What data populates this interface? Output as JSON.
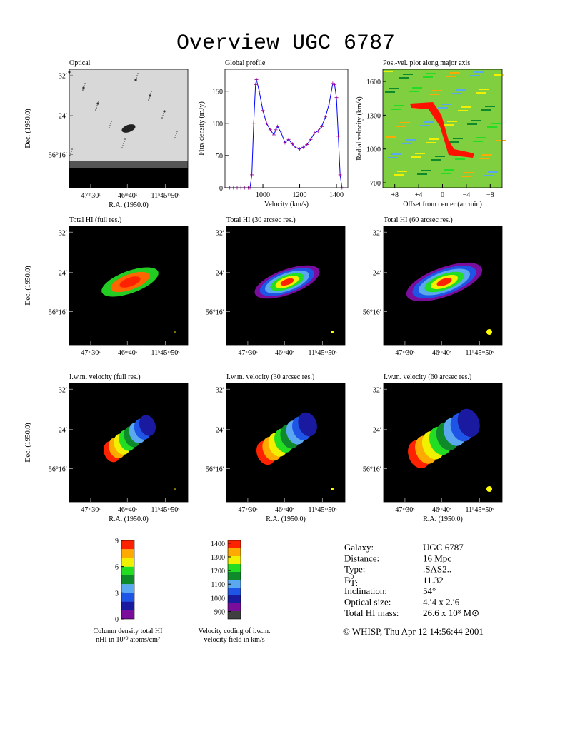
{
  "title": "Overview UGC 6787",
  "chart_data": [
    {
      "type": "line",
      "title": "Global profile",
      "xlabel": "Velocity (km/s)",
      "ylabel": "Flux density (mJy)",
      "x": [
        800,
        820,
        840,
        860,
        880,
        900,
        920,
        930,
        940,
        950,
        960,
        965,
        980,
        1000,
        1020,
        1040,
        1060,
        1070,
        1080,
        1100,
        1120,
        1140,
        1160,
        1180,
        1200,
        1220,
        1240,
        1260,
        1280,
        1300,
        1320,
        1340,
        1360,
        1380,
        1390,
        1400,
        1410,
        1420,
        1430,
        1440
      ],
      "series": [
        {
          "name": "Flux density",
          "color": "#0000ff",
          "marker_color": "#990099",
          "values": [
            0,
            0,
            0,
            0,
            0,
            0,
            0,
            0,
            20,
            100,
            160,
            168,
            150,
            120,
            100,
            90,
            82,
            90,
            95,
            85,
            70,
            75,
            68,
            62,
            60,
            63,
            67,
            75,
            85,
            88,
            95,
            110,
            130,
            162,
            160,
            140,
            80,
            20,
            0,
            0
          ]
        }
      ],
      "xlim": [
        794,
        1462
      ],
      "xticks": [
        1000,
        1200,
        1400
      ],
      "ylim": [
        0,
        184
      ],
      "yticks": [
        0,
        50,
        100,
        150
      ]
    },
    {
      "type": "image",
      "title": "Pos.-vel. plot along major axis",
      "xlabel": "Offset from center (arcmin)",
      "ylabel": "Radial velocity (km/s)",
      "xlim": [
        10,
        -10
      ],
      "xticks": [
        {
          "value": 8,
          "label": "+8"
        },
        {
          "value": 4,
          "label": "+4"
        },
        0,
        {
          "value": -4,
          "label": "−4"
        },
        {
          "value": -8,
          "label": "−8"
        }
      ],
      "ylim": [
        656,
        1708
      ],
      "yticks": [
        700,
        1000,
        1300,
        1600
      ]
    }
  ],
  "panels": [
    {
      "title": "Optical",
      "xlabel": "R.A. (1950.0)",
      "ylabel": "Dec. (1950.0)"
    },
    {
      "title": "Total HI (full res.)",
      "ylabel": "Dec. (1950.0)"
    },
    {
      "title": "Total HI (30 arcsec res.)"
    },
    {
      "title": "Total HI (60 arcsec res.)"
    },
    {
      "title": "I.w.m. velocity (full res.)",
      "xlabel": "R.A. (1950.0)",
      "ylabel": "Dec. (1950.0)"
    },
    {
      "title": "I.w.m. velocity (30 arcsec res.)",
      "xlabel": "R.A. (1950.0)"
    },
    {
      "title": "I.w.m. velocity (60 arcsec res.)",
      "xlabel": "R.A. (1950.0)"
    }
  ],
  "ra_ticks": [
    "47ᵐ30ˢ",
    "46ᵐ40ˢ",
    "11ʰ45ᵐ50ˢ"
  ],
  "dec_ticks": [
    "32′",
    "24′",
    "56°16′"
  ],
  "colorbars": [
    {
      "caption": [
        "Column density total HI",
        "nHI in 10²⁰ atoms/cm²"
      ],
      "lim": [
        0,
        9
      ],
      "ticks": [
        0,
        3,
        6,
        9
      ],
      "colors": [
        "#7a0d9c",
        "#1a1aa0",
        "#1f55e6",
        "#5aa8f0",
        "#0e8a2a",
        "#22dd22",
        "#f0f000",
        "#ffaa00",
        "#ff2200"
      ]
    },
    {
      "caption": [
        "Velocity coding of i.w.m.",
        "velocity field in km/s"
      ],
      "lim": [
        845,
        1420
      ],
      "ticks": [
        900,
        1000,
        1100,
        1200,
        1300,
        1400
      ],
      "colors": [
        "#404040",
        "#7a0d9c",
        "#1a1aa0",
        "#1f55e6",
        "#5aa8f0",
        "#0e8a2a",
        "#22dd22",
        "#f0f000",
        "#ffaa00",
        "#ff2200"
      ]
    }
  ],
  "info": [
    {
      "label": "Galaxy:",
      "value": "UGC 6787"
    },
    {
      "label": "Distance:",
      "value": "16 Mpc"
    },
    {
      "label": "Type:",
      "value": ".SAS2.."
    },
    {
      "label": "B",
      "label_sup": "0",
      "label_sub": "T:",
      "value": "11.32"
    },
    {
      "label": "Inclination:",
      "value": "54°"
    },
    {
      "label": "Optical size:",
      "value": "4.′4 x 2.′6"
    },
    {
      "label": "Total HI mass:",
      "value": "26.6 x 10⁸ M⊙"
    }
  ],
  "footer": "© WHISP, Thu Apr 12 14:56:44 2001"
}
